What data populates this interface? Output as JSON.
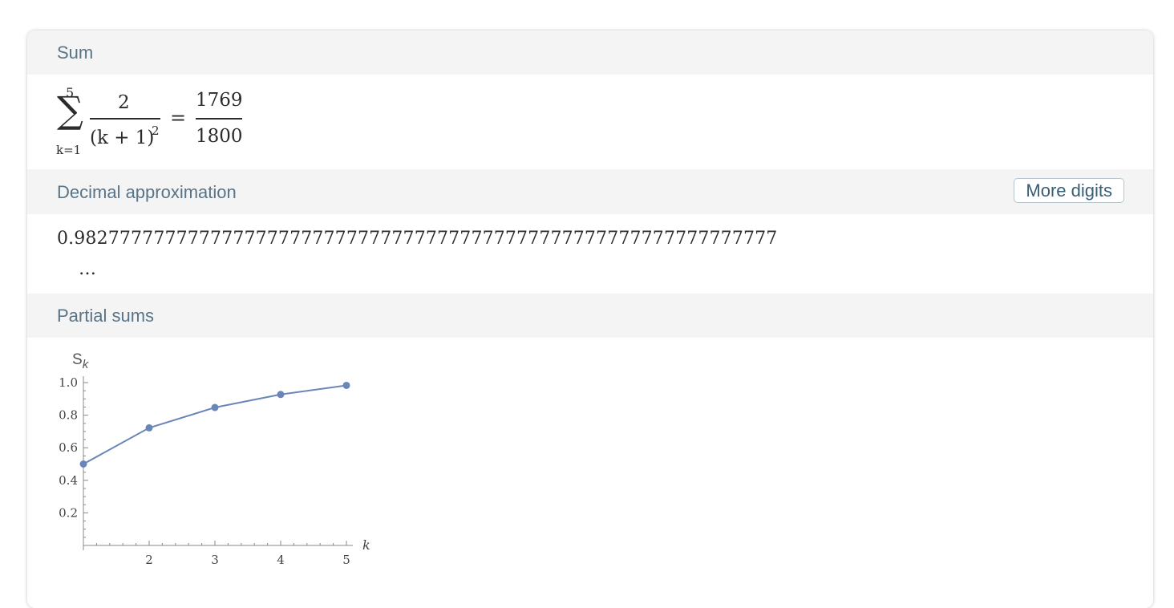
{
  "pods": {
    "sum": {
      "title": "Sum",
      "formula": {
        "upper": "5",
        "sigma": "∑",
        "lower": "k=1",
        "numerator": "2",
        "denominator": "(k + 1)",
        "exponent": "2",
        "equals": "=",
        "result_numerator": "1769",
        "result_denominator": "1800"
      }
    },
    "decimal": {
      "title": "Decimal approximation",
      "more_button": "More digits",
      "value": "0.98277777777777777777777777777777777777777777777777777777777777",
      "ellipsis": "…"
    },
    "partial": {
      "title": "Partial sums"
    }
  },
  "chart_data": {
    "type": "line",
    "x": [
      1,
      2,
      3,
      4,
      5
    ],
    "y": [
      0.5,
      0.7222,
      0.8472,
      0.9272,
      0.9828
    ],
    "xlabel": "k",
    "ylabel_main": "S",
    "ylabel_sub": "k",
    "xticks": [
      2,
      3,
      4,
      5
    ],
    "yticks": [
      0.2,
      0.4,
      0.6,
      0.8,
      1.0
    ],
    "ytick_labels": [
      "0.2",
      "0.4",
      "0.6",
      "0.8",
      "1.0"
    ],
    "xlim": [
      1,
      5
    ],
    "ylim": [
      0,
      1.0
    ],
    "color": "#6a86b8"
  }
}
